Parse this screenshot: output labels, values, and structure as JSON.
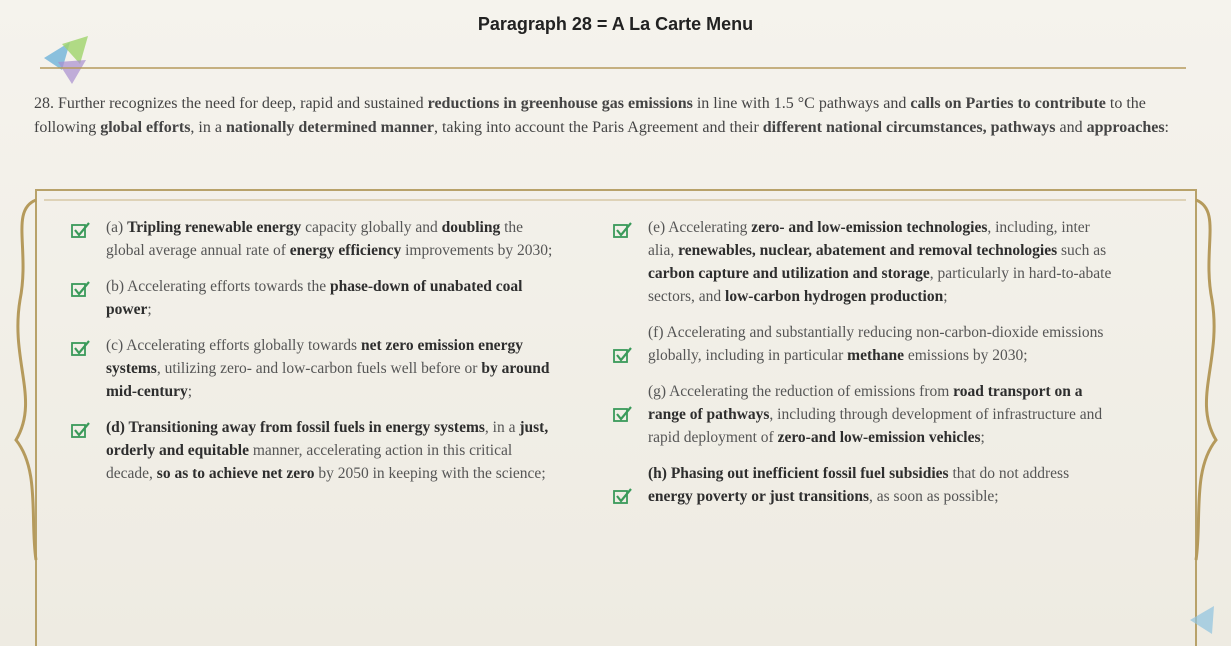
{
  "header": {
    "title": "Paragraph 28 = A La Carte Menu"
  },
  "intro": {
    "parts": [
      {
        "text": "28. Further recognizes the need for deep, rapid and sustained ",
        "bold": false
      },
      {
        "text": "reductions in greenhouse gas emissions",
        "bold": true
      },
      {
        "text": " in line with 1.5 °C pathways and ",
        "bold": false
      },
      {
        "text": "calls on Parties to contribute",
        "bold": true
      },
      {
        "text": " to the following ",
        "bold": false
      },
      {
        "text": "global efforts",
        "bold": true
      },
      {
        "text": ", in a ",
        "bold": false
      },
      {
        "text": "nationally determined manner",
        "bold": true
      },
      {
        "text": ", taking into account the Paris Agreement and their ",
        "bold": false
      },
      {
        "text": "different national circumstances, pathways",
        "bold": true
      },
      {
        "text": " and ",
        "bold": false
      },
      {
        "text": "approaches",
        "bold": true
      },
      {
        "text": ":",
        "bold": false
      }
    ]
  },
  "columns": [
    {
      "items": [
        {
          "parts": [
            {
              "text": "(a) ",
              "bold": false
            },
            {
              "text": "Tripling renewable energy",
              "bold": true
            },
            {
              "text": " capacity globally and ",
              "bold": false
            },
            {
              "text": "doubling",
              "bold": true
            },
            {
              "text": " the global average annual rate of ",
              "bold": false
            },
            {
              "text": "energy efficiency",
              "bold": true
            },
            {
              "text": " improvements by 2030;",
              "bold": false
            }
          ]
        },
        {
          "parts": [
            {
              "text": "(b) Accelerating efforts towards the ",
              "bold": false
            },
            {
              "text": "phase-down of unabated coal power",
              "bold": true
            },
            {
              "text": ";",
              "bold": false
            }
          ]
        },
        {
          "parts": [
            {
              "text": "(c) Accelerating efforts globally towards ",
              "bold": false
            },
            {
              "text": "net zero emission energy systems",
              "bold": true
            },
            {
              "text": ", utilizing zero- and low-carbon fuels well before or ",
              "bold": false
            },
            {
              "text": "by around mid-century",
              "bold": true
            },
            {
              "text": ";",
              "bold": false
            }
          ]
        },
        {
          "parts": [
            {
              "text": "(d) Transitioning away from fossil fuels in energy systems",
              "bold": true
            },
            {
              "text": ", in a ",
              "bold": false
            },
            {
              "text": "just, orderly and equitable",
              "bold": true
            },
            {
              "text": " manner, accelerating action in this critical decade, ",
              "bold": false
            },
            {
              "text": "so as to achieve net zero",
              "bold": true
            },
            {
              "text": " by 2050 in keeping with the science;",
              "bold": false
            }
          ]
        }
      ]
    },
    {
      "items": [
        {
          "parts": [
            {
              "text": "(e) Accelerating ",
              "bold": false
            },
            {
              "text": "zero- and low-emission technologies",
              "bold": true
            },
            {
              "text": ", including, inter alia, ",
              "bold": false
            },
            {
              "text": "renewables, nuclear, abatement and removal technologies",
              "bold": true
            },
            {
              "text": " such as ",
              "bold": false
            },
            {
              "text": "carbon capture and utilization and storage",
              "bold": true
            },
            {
              "text": ", particularly in hard-to-abate sectors, and ",
              "bold": false
            },
            {
              "text": "low-carbon hydrogen production",
              "bold": true
            },
            {
              "text": ";",
              "bold": false
            }
          ]
        },
        {
          "parts": [
            {
              "text": "(f) Accelerating and substantially reducing non-carbon-dioxide emissions globally, including in particular ",
              "bold": false
            },
            {
              "text": "methane",
              "bold": true
            },
            {
              "text": " emissions by 2030;",
              "bold": false
            }
          ]
        },
        {
          "parts": [
            {
              "text": "(g) Accelerating the reduction of emissions from ",
              "bold": false
            },
            {
              "text": "road transport on a range of pathways",
              "bold": true
            },
            {
              "text": ", including through development of infrastructure and rapid deployment of ",
              "bold": false
            },
            {
              "text": "zero-and low-emission vehicles",
              "bold": true
            },
            {
              "text": ";",
              "bold": false
            }
          ]
        },
        {
          "parts": [
            {
              "text": "(h) Phasing out inefficient fossil fuel subsidies",
              "bold": true
            },
            {
              "text": " that do not address ",
              "bold": false
            },
            {
              "text": "energy poverty or just transitions",
              "bold": true
            },
            {
              "text": ", as soon as possible;",
              "bold": false
            }
          ]
        }
      ]
    }
  ]
}
